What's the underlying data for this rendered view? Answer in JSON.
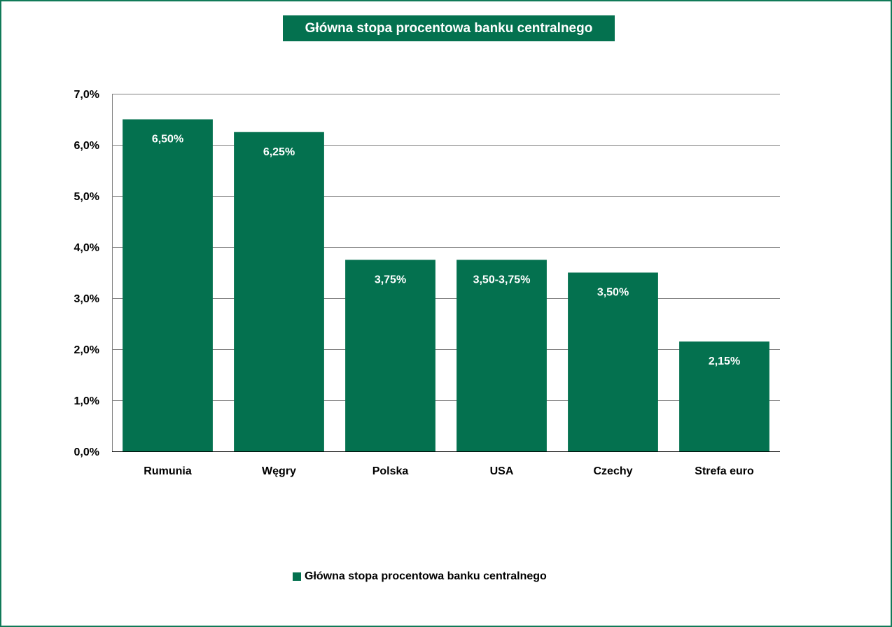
{
  "chart_data": {
    "type": "bar",
    "title": "Główna stopa procentowa banku centralnego",
    "categories": [
      "Rumunia",
      "Węgry",
      "Polska",
      "USA",
      "Czechy",
      "Strefa euro"
    ],
    "series": [
      {
        "name": "Główna stopa procentowa banku centralnego",
        "values": [
          6.5,
          6.25,
          3.75,
          3.75,
          3.5,
          2.15
        ],
        "data_labels": [
          "6,50%",
          "6,25%",
          "3,75%",
          "3,50-3,75%",
          "3,50%",
          "2,15%"
        ],
        "color": "#04714f"
      }
    ],
    "ylim": [
      0,
      7
    ],
    "yticks": [
      0,
      1,
      2,
      3,
      4,
      5,
      6,
      7
    ],
    "ytick_labels": [
      "0,0%",
      "1,0%",
      "2,0%",
      "3,0%",
      "4,0%",
      "5,0%",
      "6,0%",
      "7,0%"
    ],
    "grid": true,
    "legend_position": "bottom",
    "xlabel": "",
    "ylabel": ""
  },
  "colors": {
    "bar": "#04714f",
    "frame": "#117a58",
    "title_bg": "#04714f",
    "grid": "#7f7f7f"
  }
}
